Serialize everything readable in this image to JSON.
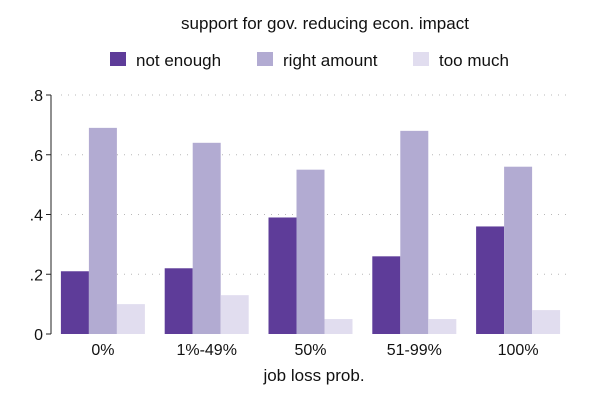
{
  "chart_data": {
    "type": "bar",
    "title": "support for gov. reducing econ. impact",
    "xlabel": "job loss prob.",
    "ylabel": "",
    "categories": [
      "0%",
      "1%-49%",
      "50%",
      "51-99%",
      "100%"
    ],
    "series": [
      {
        "name": "not enough",
        "color": "#5e3c99",
        "values": [
          0.21,
          0.22,
          0.39,
          0.26,
          0.36
        ]
      },
      {
        "name": "right amount",
        "color": "#b2abd2",
        "values": [
          0.69,
          0.64,
          0.55,
          0.68,
          0.56
        ]
      },
      {
        "name": "too much",
        "color": "#e1ddef",
        "values": [
          0.1,
          0.13,
          0.05,
          0.05,
          0.08
        ]
      }
    ],
    "ylim": [
      0,
      0.8
    ],
    "yticks": [
      {
        "value": 0,
        "label": "0"
      },
      {
        "value": 0.2,
        "label": ".2"
      },
      {
        "value": 0.4,
        "label": ".4"
      },
      {
        "value": 0.6,
        "label": ".6"
      },
      {
        "value": 0.8,
        "label": ".8"
      }
    ],
    "grid": true,
    "legend_position": "top"
  }
}
